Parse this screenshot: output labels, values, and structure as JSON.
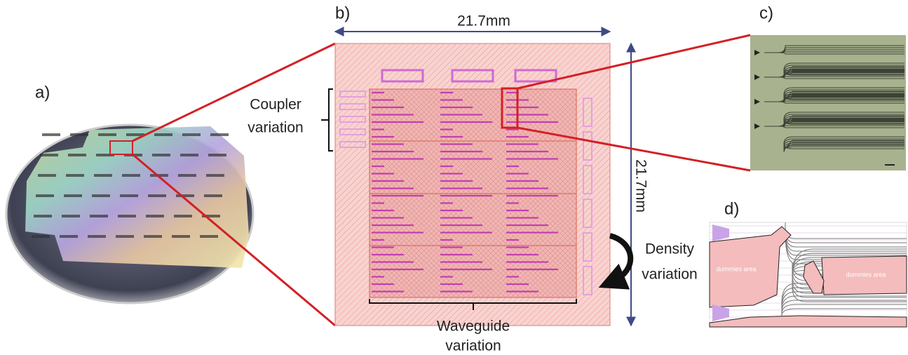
{
  "panels": [
    {
      "label": "a)"
    },
    {
      "label": "b)",
      "width_dim": "21.7mm",
      "height_dim": "21.7mm",
      "coupler_note": [
        "Coupler",
        "variation"
      ],
      "waveguide_note": [
        "Waveguide",
        "variation"
      ],
      "density_note": [
        "Density",
        "variation"
      ]
    },
    {
      "label": "c)"
    },
    {
      "label": "d)",
      "regions": [
        "dummies area",
        "dummies area"
      ]
    }
  ]
}
